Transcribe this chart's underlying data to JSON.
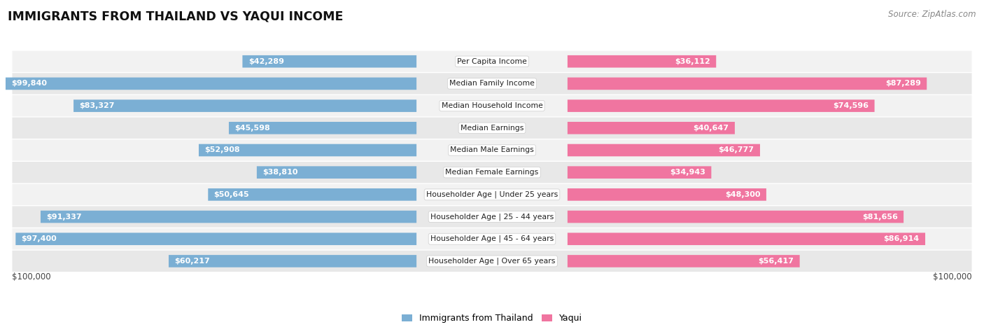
{
  "title": "IMMIGRANTS FROM THAILAND VS YAQUI INCOME",
  "source": "Source: ZipAtlas.com",
  "categories": [
    "Per Capita Income",
    "Median Family Income",
    "Median Household Income",
    "Median Earnings",
    "Median Male Earnings",
    "Median Female Earnings",
    "Householder Age | Under 25 years",
    "Householder Age | 25 - 44 years",
    "Householder Age | 45 - 64 years",
    "Householder Age | Over 65 years"
  ],
  "thailand_values": [
    42289,
    99840,
    83327,
    45598,
    52908,
    38810,
    50645,
    91337,
    97400,
    60217
  ],
  "yaqui_values": [
    36112,
    87289,
    74596,
    40647,
    46777,
    34943,
    48300,
    81656,
    86914,
    56417
  ],
  "thailand_labels": [
    "$42,289",
    "$99,840",
    "$83,327",
    "$45,598",
    "$52,908",
    "$38,810",
    "$50,645",
    "$91,337",
    "$97,400",
    "$60,217"
  ],
  "yaqui_labels": [
    "$36,112",
    "$87,289",
    "$74,596",
    "$40,647",
    "$46,777",
    "$34,943",
    "$48,300",
    "$81,656",
    "$86,914",
    "$56,417"
  ],
  "max_value": 100000,
  "thailand_color": "#7bafd4",
  "yaqui_color": "#f075a0",
  "row_bg_colors": [
    "#f2f2f2",
    "#e8e8e8"
  ],
  "legend_thailand": "Immigrants from Thailand",
  "legend_yaqui": "Yaqui"
}
